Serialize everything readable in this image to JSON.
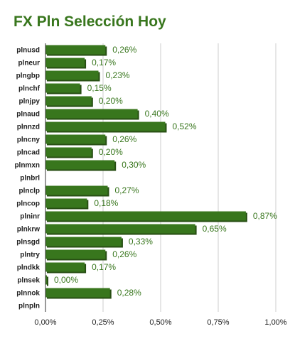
{
  "chart_data": {
    "type": "bar",
    "orientation": "horizontal",
    "title": "FX Pln Selección Hoy",
    "categories": [
      "plnusd",
      "plneur",
      "plngbp",
      "plnchf",
      "plnjpy",
      "plnaud",
      "plnnzd",
      "plncny",
      "plncad",
      "plnmxn",
      "plnbrl",
      "plnclp",
      "plncop",
      "plninr",
      "plnkrw",
      "plnsgd",
      "plntry",
      "plndkk",
      "plnsek",
      "plnnok",
      "plnpln"
    ],
    "values": [
      0.26,
      0.17,
      0.23,
      0.15,
      0.2,
      0.4,
      0.52,
      0.26,
      0.2,
      0.3,
      null,
      0.27,
      0.18,
      0.87,
      0.65,
      0.33,
      0.26,
      0.17,
      0.0,
      0.28,
      null
    ],
    "data_labels": [
      "0,26%",
      "0,17%",
      "0,23%",
      "0,15%",
      "0,20%",
      "0,40%",
      "0,52%",
      "0,26%",
      "0,20%",
      "0,30%",
      "",
      "0,27%",
      "0,18%",
      "0,87%",
      "0,65%",
      "0,33%",
      "0,26%",
      "0,17%",
      "0,00%",
      "0,28%",
      ""
    ],
    "xlim": [
      0,
      1.0
    ],
    "x_ticks": [
      0,
      0.25,
      0.5,
      0.75,
      1.0
    ],
    "x_tick_labels": [
      "0,00%",
      "0,25%",
      "0,50%",
      "0,75%",
      "1,00%"
    ],
    "xlabel": "",
    "ylabel": "",
    "grid": true,
    "legend": "none",
    "colors": {
      "bar": "#38761d",
      "bar_shadow": "#274e13",
      "title": "#38761d",
      "data_label": "#38761d",
      "grid": "#cccccc"
    }
  }
}
